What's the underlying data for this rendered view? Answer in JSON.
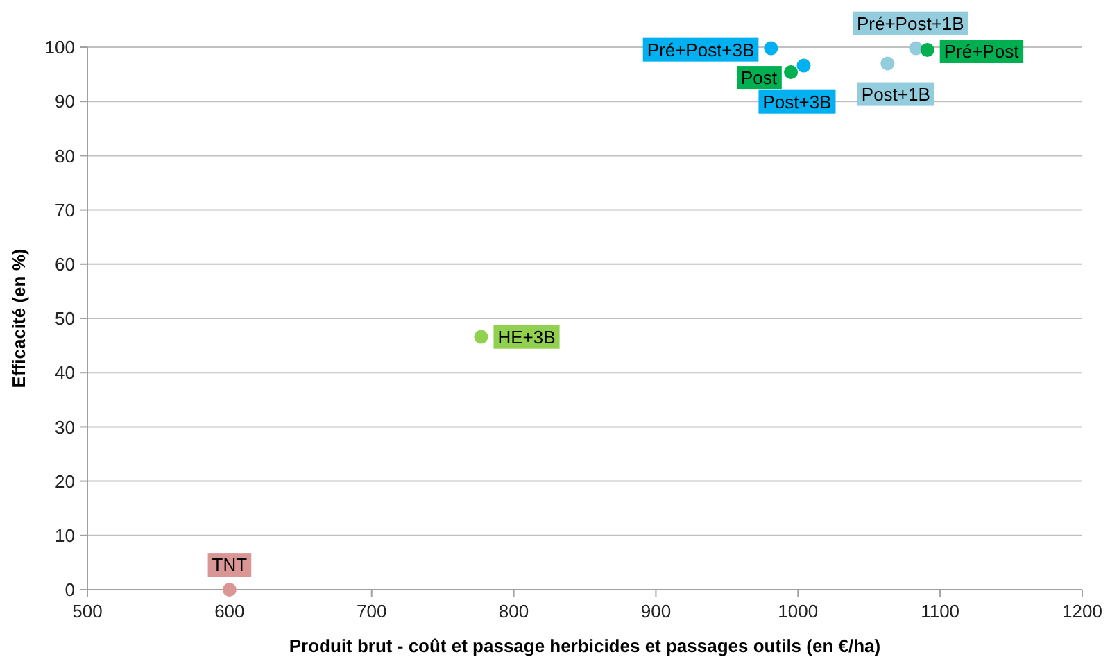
{
  "chart_data": {
    "type": "scatter",
    "xlabel": "Produit brut - coût et passage herbicides et passages outils (en €/ha)",
    "ylabel": "Efficacité (en %)",
    "xlim": [
      500,
      1200
    ],
    "xticks": [
      500,
      600,
      700,
      800,
      900,
      1000,
      1100,
      1200
    ],
    "ylim": [
      0,
      100
    ],
    "yticks": [
      0,
      10,
      20,
      30,
      40,
      50,
      60,
      70,
      80,
      90,
      100
    ],
    "grid": "y",
    "marker": "circle",
    "series": [
      {
        "name": "TNT",
        "color": "#d99694",
        "x": [
          600
        ],
        "values": [
          0
        ]
      },
      {
        "name": "HE+3B",
        "color": "#92d050",
        "x": [
          777
        ],
        "values": [
          46.6
        ]
      },
      {
        "name": "Pré+Post+3B",
        "color": "#00b0f0",
        "x": [
          981
        ],
        "values": [
          99.8
        ]
      },
      {
        "name": "Pré+Post+1B",
        "color": "#93cddd",
        "x": [
          1083
        ],
        "values": [
          99.8
        ]
      },
      {
        "name": "Post",
        "color": "#00b050",
        "x": [
          995
        ],
        "values": [
          95.4
        ]
      },
      {
        "name": "Post+3B",
        "color": "#00b0f0",
        "x": [
          1004
        ],
        "values": [
          96.6
        ]
      },
      {
        "name": "Post+1B",
        "color": "#93cddd",
        "x": [
          1063
        ],
        "values": [
          97
        ]
      },
      {
        "name": "Pré+Post",
        "color": "#00b050",
        "x": [
          1091
        ],
        "values": [
          99.5
        ]
      }
    ]
  }
}
